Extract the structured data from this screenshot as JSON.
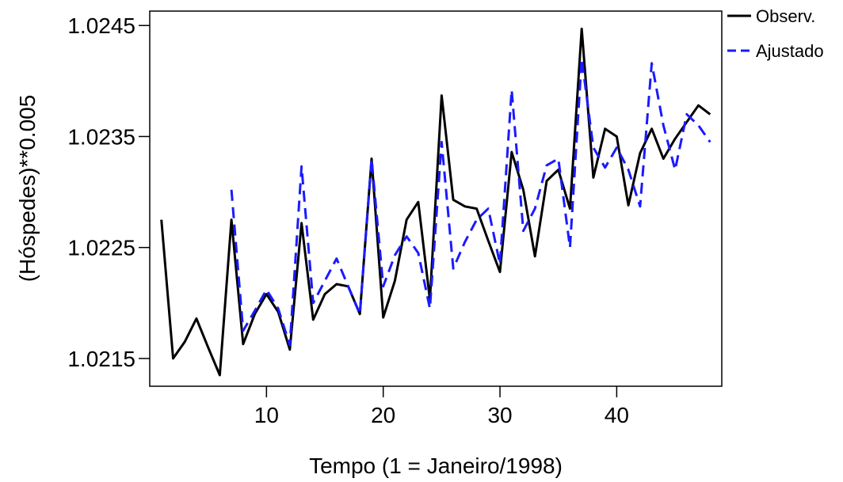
{
  "chart_data": {
    "type": "line",
    "title": "",
    "xlabel": "Tempo (1 = Janeiro/1998)",
    "ylabel": "(Hóspedes)**0.005",
    "xlim": [
      0,
      49
    ],
    "ylim": [
      1.02125,
      1.02463
    ],
    "x_ticks": [
      10,
      20,
      30,
      40
    ],
    "y_ticks": [
      1.0215,
      1.0225,
      1.0235,
      1.0245
    ],
    "x_tick_labels": [
      "10",
      "20",
      "30",
      "40"
    ],
    "y_tick_labels": [
      "1.0215",
      "1.0225",
      "1.0235",
      "1.0245"
    ],
    "legend_position": "top-right outside",
    "grid": false,
    "series": [
      {
        "name": "Observ.",
        "color": "#000000",
        "style": "solid",
        "x": [
          1,
          2,
          3,
          4,
          5,
          6,
          7,
          8,
          9,
          10,
          11,
          12,
          13,
          14,
          15,
          16,
          17,
          18,
          19,
          20,
          21,
          22,
          23,
          24,
          25,
          26,
          27,
          28,
          29,
          30,
          31,
          32,
          33,
          34,
          35,
          36,
          37,
          38,
          39,
          40,
          41,
          42,
          43,
          44,
          45,
          46,
          47,
          48
        ],
        "y": [
          1.02275,
          1.0215,
          1.02165,
          1.02186,
          1.0216,
          1.02135,
          1.02275,
          1.02163,
          1.0219,
          1.02208,
          1.02192,
          1.02158,
          1.02272,
          1.02185,
          1.02208,
          1.02217,
          1.02215,
          1.0219,
          1.0233,
          1.02187,
          1.0222,
          1.02275,
          1.02291,
          1.02203,
          1.02387,
          1.02293,
          1.02287,
          1.02285,
          1.02256,
          1.02228,
          1.02336,
          1.02302,
          1.02242,
          1.0231,
          1.0232,
          1.02285,
          1.02447,
          1.02313,
          1.02357,
          1.0235,
          1.02288,
          1.02335,
          1.02357,
          1.0233,
          1.02348,
          1.02363,
          1.02378,
          1.0237
        ]
      },
      {
        "name": "Ajustado",
        "color": "#1a1aff",
        "style": "dashed",
        "x": [
          7,
          8,
          9,
          10,
          11,
          12,
          13,
          14,
          15,
          16,
          17,
          18,
          19,
          20,
          21,
          22,
          23,
          24,
          25,
          26,
          27,
          28,
          29,
          30,
          31,
          32,
          33,
          34,
          35,
          36,
          37,
          38,
          39,
          40,
          41,
          42,
          43,
          44,
          45,
          46,
          47,
          48
        ],
        "y": [
          1.02302,
          1.02175,
          1.02193,
          1.02212,
          1.02195,
          1.02162,
          1.02323,
          1.022,
          1.0222,
          1.0224,
          1.02215,
          1.0219,
          1.0233,
          1.02215,
          1.02243,
          1.0226,
          1.02245,
          1.02195,
          1.02345,
          1.02231,
          1.02255,
          1.02275,
          1.02285,
          1.02235,
          1.02392,
          1.02265,
          1.02285,
          1.02324,
          1.0233,
          1.0225,
          1.0242,
          1.0234,
          1.02322,
          1.0234,
          1.0232,
          1.02287,
          1.02416,
          1.0236,
          1.0232,
          1.0237,
          1.0236,
          1.02345
        ]
      }
    ]
  }
}
